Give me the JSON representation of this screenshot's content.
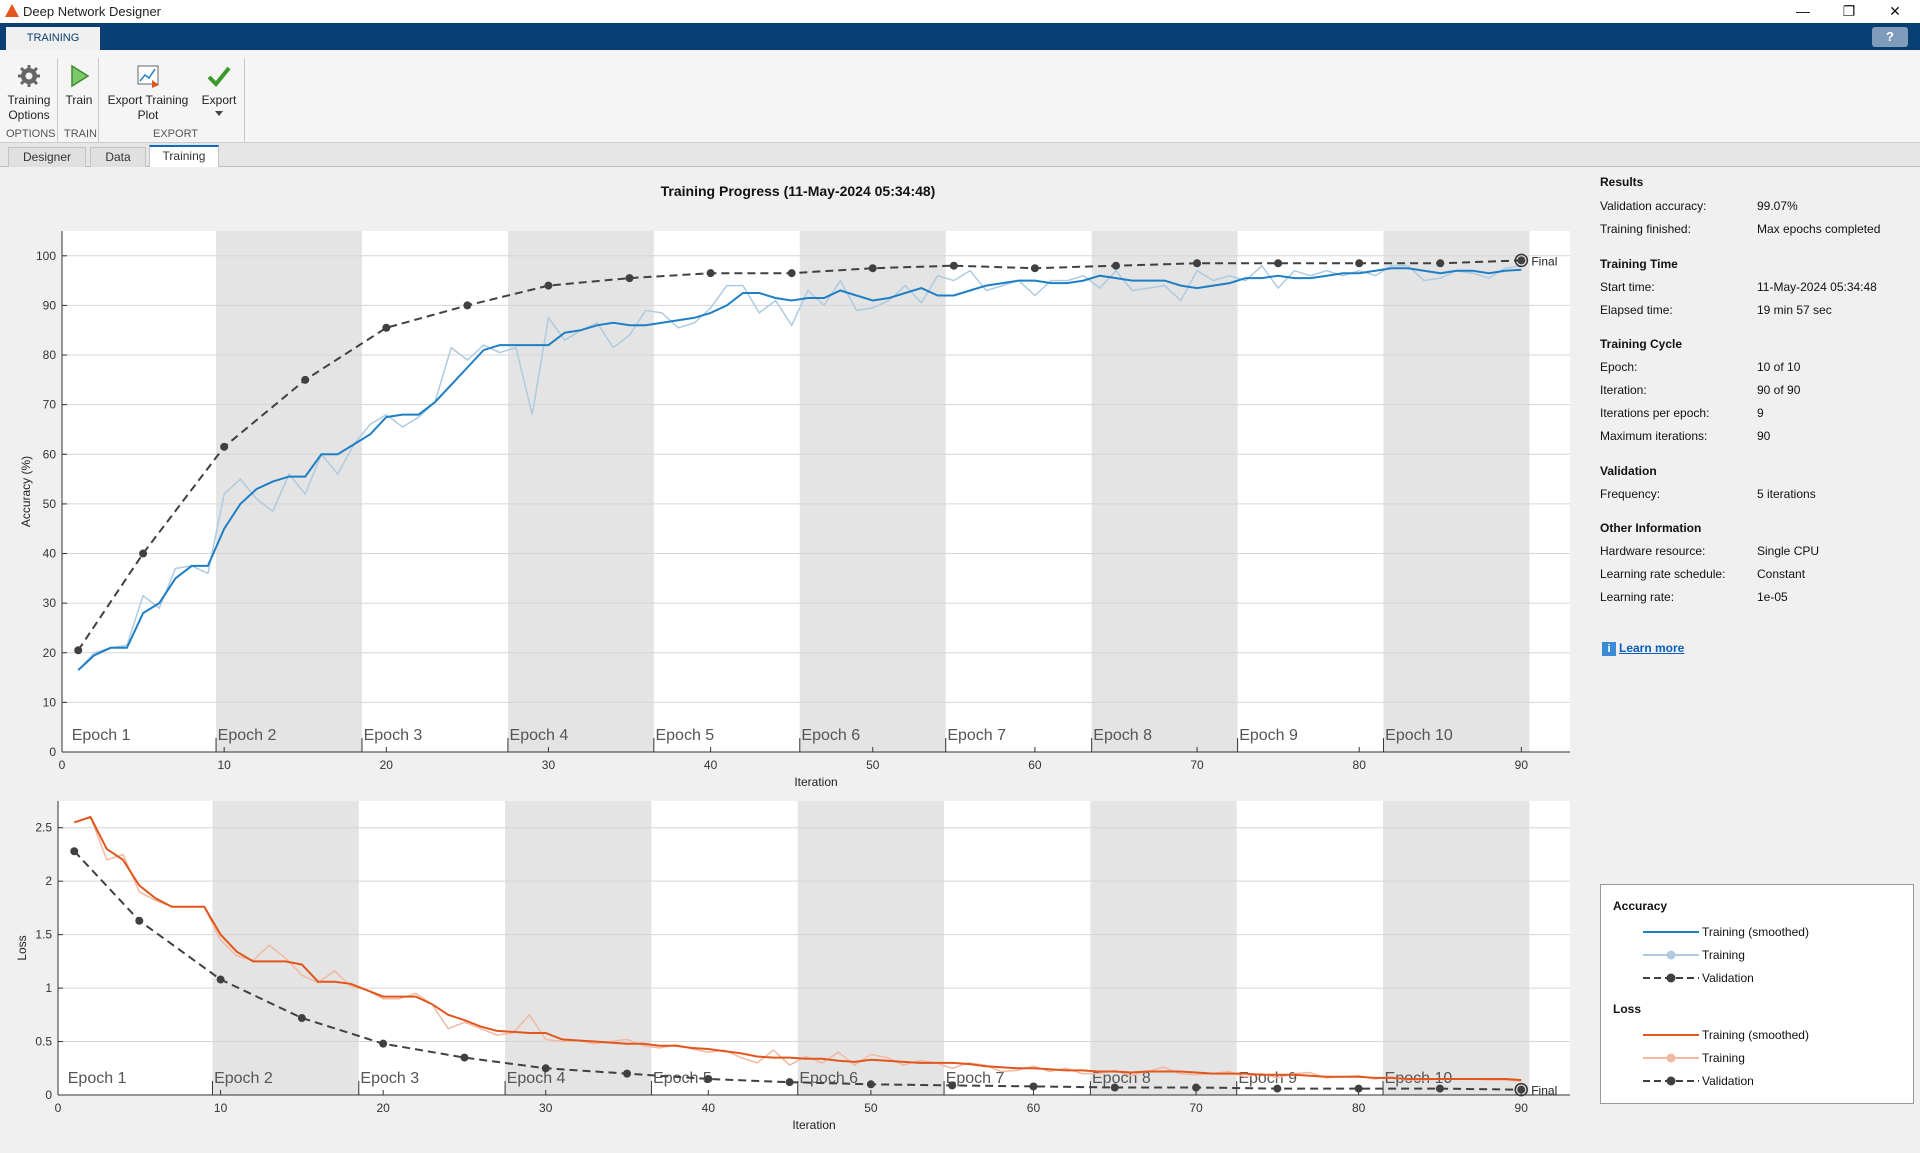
{
  "window": {
    "title": "Deep Network Designer",
    "minimize": "—",
    "restore": "❐",
    "close": "✕"
  },
  "ribbon": {
    "active_tab": "TRAINING",
    "help": "?",
    "tools": {
      "training_options": "Training Options",
      "train": "Train",
      "export_plot": "Export Training Plot",
      "export": "Export"
    },
    "sections": {
      "options": "OPTIONS",
      "train": "TRAIN",
      "export": "EXPORT"
    }
  },
  "doc_tabs": [
    "Designer",
    "Data",
    "Training"
  ],
  "results": {
    "sections": {
      "results": "Results",
      "training_time": "Training Time",
      "training_cycle": "Training Cycle",
      "validation": "Validation",
      "other": "Other Information"
    },
    "rows": {
      "validation_accuracy": {
        "k": "Validation accuracy:",
        "v": "99.07%"
      },
      "training_finished": {
        "k": "Training finished:",
        "v": "Max epochs completed"
      },
      "start_time": {
        "k": "Start time:",
        "v": "11-May-2024 05:34:48"
      },
      "elapsed": {
        "k": "Elapsed time:",
        "v": "19 min 57 sec"
      },
      "epoch": {
        "k": "Epoch:",
        "v": "10 of 10"
      },
      "iteration": {
        "k": "Iteration:",
        "v": "90 of 90"
      },
      "iter_per_epoch": {
        "k": "Iterations per epoch:",
        "v": "9"
      },
      "max_iter": {
        "k": "Maximum iterations:",
        "v": "90"
      },
      "frequency": {
        "k": "Frequency:",
        "v": "5 iterations"
      },
      "hardware": {
        "k": "Hardware resource:",
        "v": "Single CPU"
      },
      "lr_schedule": {
        "k": "Learning rate schedule:",
        "v": "Constant"
      },
      "lr": {
        "k": "Learning rate:",
        "v": "1e-05"
      }
    },
    "learn_more": "Learn more"
  },
  "legend": {
    "accuracy_title": "Accuracy",
    "loss_title": "Loss",
    "smoothed": "Training (smoothed)",
    "training": "Training",
    "validation": "Validation"
  },
  "colors": {
    "accuracy": "#1f7fc4",
    "accuracy_light": "#aecbe0",
    "loss": "#e0571d",
    "loss_light": "#f2b9a2",
    "validation": "#404040",
    "epoch_shade": "#e4e4e4"
  },
  "chart_data": [
    {
      "type": "line",
      "title": "Training Progress (11-May-2024 05:34:48)",
      "xlabel": "Iteration",
      "ylabel": "Accuracy (%)",
      "xlim": [
        0,
        93
      ],
      "ylim": [
        0,
        105
      ],
      "xticks": [
        0,
        10,
        20,
        30,
        40,
        50,
        60,
        70,
        80,
        90
      ],
      "yticks": [
        0,
        10,
        20,
        30,
        40,
        50,
        60,
        70,
        80,
        90,
        100
      ],
      "epochs": [
        "Epoch 1",
        "Epoch 2",
        "Epoch 3",
        "Epoch 4",
        "Epoch 5",
        "Epoch 6",
        "Epoch 7",
        "Epoch 8",
        "Epoch 9",
        "Epoch 10"
      ],
      "final_label": "Final",
      "series": [
        {
          "name": "Training (smoothed)",
          "x": [
            1,
            2,
            3,
            4,
            5,
            6,
            7,
            8,
            9,
            10,
            11,
            12,
            13,
            14,
            15,
            16,
            17,
            18,
            19,
            20,
            21,
            22,
            23,
            24,
            25,
            26,
            27,
            28,
            29,
            30,
            31,
            32,
            33,
            34,
            35,
            36,
            37,
            38,
            39,
            40,
            41,
            42,
            43,
            44,
            45,
            46,
            47,
            48,
            49,
            50,
            51,
            52,
            53,
            54,
            55,
            56,
            57,
            58,
            59,
            60,
            61,
            62,
            63,
            64,
            65,
            66,
            67,
            68,
            69,
            70,
            71,
            72,
            73,
            74,
            75,
            76,
            77,
            78,
            79,
            80,
            81,
            82,
            83,
            84,
            85,
            86,
            87,
            88,
            89,
            90
          ],
          "y": [
            16.5,
            19.5,
            21,
            21,
            28,
            30,
            35,
            37.5,
            37.5,
            45,
            50,
            53,
            54.5,
            55.5,
            55.5,
            60,
            60,
            62,
            64,
            67.5,
            68,
            68,
            70.5,
            74,
            77.5,
            81,
            82,
            82,
            82,
            82,
            84.5,
            85,
            86,
            86.5,
            86,
            86,
            86.5,
            87,
            87.5,
            88.5,
            90,
            92.5,
            92.5,
            91.5,
            91,
            91.5,
            91.5,
            93,
            92,
            91,
            91.5,
            92.5,
            93.5,
            92,
            92,
            93,
            94,
            94.5,
            95,
            95,
            94.5,
            94.5,
            95,
            96,
            95.5,
            95,
            95,
            95,
            94,
            93.5,
            94,
            94.5,
            95.5,
            95.5,
            96,
            95.5,
            95.5,
            96,
            96.5,
            96.5,
            97,
            97.5,
            97.5,
            97,
            96.5,
            97,
            97,
            96.5,
            97,
            97.2
          ]
        },
        {
          "name": "Training",
          "x": [
            1,
            2,
            3,
            4,
            5,
            6,
            7,
            8,
            9,
            10,
            11,
            12,
            13,
            14,
            15,
            16,
            17,
            18,
            19,
            20,
            21,
            22,
            23,
            24,
            25,
            26,
            27,
            28,
            29,
            30,
            31,
            32,
            33,
            34,
            35,
            36,
            37,
            38,
            39,
            40,
            41,
            42,
            43,
            44,
            45,
            46,
            47,
            48,
            49,
            50,
            51,
            52,
            53,
            54,
            55,
            56,
            57,
            58,
            59,
            60,
            61,
            62,
            63,
            64,
            65,
            66,
            67,
            68,
            69,
            70,
            71,
            72,
            73,
            74,
            75,
            76,
            77,
            78,
            79,
            80,
            81,
            82,
            83,
            84,
            85,
            86,
            87,
            88,
            89,
            90
          ],
          "y": [
            16.5,
            20,
            21,
            21.5,
            31.5,
            29,
            37,
            37.5,
            36,
            52,
            55,
            51,
            48.5,
            56,
            52,
            60,
            56,
            62,
            66,
            68,
            65.5,
            67.5,
            70.5,
            81.5,
            79,
            82,
            80.5,
            81.5,
            68,
            87.5,
            83,
            85,
            86.5,
            81.5,
            84,
            89,
            88.5,
            85.5,
            86.5,
            89.5,
            94,
            94,
            88.5,
            91,
            86,
            93,
            90,
            95,
            89,
            89.5,
            91,
            94,
            90.5,
            96,
            95,
            97,
            93,
            94,
            95,
            92,
            95,
            95,
            96,
            93.5,
            97,
            93,
            93.5,
            94,
            91,
            97,
            95,
            96,
            95,
            98,
            93.5,
            97,
            96,
            97,
            96,
            97,
            96,
            98,
            98,
            95,
            95.5,
            97,
            96.5,
            95.5,
            97.5,
            98
          ]
        },
        {
          "name": "Validation",
          "x": [
            1,
            5,
            10,
            15,
            20,
            25,
            30,
            35,
            40,
            45,
            50,
            55,
            60,
            65,
            70,
            75,
            80,
            85,
            90
          ],
          "y": [
            20.5,
            40,
            61.5,
            75,
            85.5,
            90,
            94,
            95.5,
            96.5,
            96.5,
            97.5,
            98,
            97.5,
            98,
            98.5,
            98.5,
            98.5,
            98.5,
            99.07
          ]
        }
      ]
    },
    {
      "type": "line",
      "xlabel": "Iteration",
      "ylabel": "Loss",
      "xlim": [
        0,
        93
      ],
      "ylim": [
        0,
        2.75
      ],
      "xticks": [
        0,
        10,
        20,
        30,
        40,
        50,
        60,
        70,
        80,
        90
      ],
      "yticks": [
        0,
        0.5,
        1,
        1.5,
        2,
        2.5
      ],
      "ytick_labels": [
        "0",
        "0.5",
        "1",
        "1.5",
        "2",
        "2.5"
      ],
      "epochs": [
        "Epoch 1",
        "Epoch 2",
        "Epoch 3",
        "Epoch 4",
        "Epoch 5",
        "Epoch 6",
        "Epoch 7",
        "Epoch 8",
        "Epoch 9",
        "Epoch 10"
      ],
      "final_label": "Final",
      "series": [
        {
          "name": "Training (smoothed)",
          "x": [
            1,
            2,
            3,
            4,
            5,
            6,
            7,
            8,
            9,
            10,
            11,
            12,
            13,
            14,
            15,
            16,
            17,
            18,
            19,
            20,
            21,
            22,
            23,
            24,
            25,
            26,
            27,
            28,
            29,
            30,
            31,
            32,
            33,
            34,
            35,
            36,
            37,
            38,
            39,
            40,
            41,
            42,
            43,
            44,
            45,
            46,
            47,
            48,
            49,
            50,
            51,
            52,
            53,
            54,
            55,
            56,
            57,
            58,
            59,
            60,
            61,
            62,
            63,
            64,
            65,
            66,
            67,
            68,
            69,
            70,
            71,
            72,
            73,
            74,
            75,
            76,
            77,
            78,
            79,
            80,
            81,
            82,
            83,
            84,
            85,
            86,
            87,
            88,
            89,
            90
          ],
          "y": [
            2.55,
            2.6,
            2.3,
            2.2,
            1.96,
            1.84,
            1.76,
            1.76,
            1.76,
            1.5,
            1.34,
            1.25,
            1.25,
            1.25,
            1.22,
            1.06,
            1.06,
            1.04,
            0.98,
            0.92,
            0.92,
            0.92,
            0.85,
            0.75,
            0.7,
            0.64,
            0.6,
            0.59,
            0.58,
            0.58,
            0.52,
            0.51,
            0.5,
            0.49,
            0.48,
            0.48,
            0.46,
            0.46,
            0.44,
            0.43,
            0.41,
            0.39,
            0.36,
            0.35,
            0.35,
            0.34,
            0.34,
            0.32,
            0.31,
            0.33,
            0.32,
            0.31,
            0.3,
            0.3,
            0.3,
            0.29,
            0.27,
            0.26,
            0.25,
            0.25,
            0.24,
            0.23,
            0.23,
            0.22,
            0.22,
            0.21,
            0.22,
            0.22,
            0.22,
            0.21,
            0.2,
            0.2,
            0.2,
            0.19,
            0.19,
            0.19,
            0.18,
            0.17,
            0.17,
            0.17,
            0.16,
            0.16,
            0.15,
            0.15,
            0.15,
            0.15,
            0.15,
            0.15,
            0.15,
            0.14
          ]
        },
        {
          "name": "Training",
          "x": [
            1,
            2,
            3,
            4,
            5,
            6,
            7,
            8,
            9,
            10,
            11,
            12,
            13,
            14,
            15,
            16,
            17,
            18,
            19,
            20,
            21,
            22,
            23,
            24,
            25,
            26,
            27,
            28,
            29,
            30,
            31,
            32,
            33,
            34,
            35,
            36,
            37,
            38,
            39,
            40,
            41,
            42,
            43,
            44,
            45,
            46,
            47,
            48,
            49,
            50,
            51,
            52,
            53,
            54,
            55,
            56,
            57,
            58,
            59,
            60,
            61,
            62,
            63,
            64,
            65,
            66,
            67,
            68,
            69,
            70,
            71,
            72,
            73,
            74,
            75,
            76,
            77,
            78,
            79,
            80,
            81,
            82,
            83,
            84,
            85,
            86,
            87,
            88,
            89,
            90
          ],
          "y": [
            2.55,
            2.6,
            2.2,
            2.25,
            1.9,
            1.82,
            1.76,
            1.76,
            1.76,
            1.45,
            1.3,
            1.26,
            1.4,
            1.28,
            1.12,
            1.05,
            1.16,
            1.02,
            0.98,
            0.9,
            0.9,
            0.95,
            0.85,
            0.62,
            0.68,
            0.62,
            0.56,
            0.58,
            0.75,
            0.52,
            0.5,
            0.51,
            0.48,
            0.5,
            0.52,
            0.46,
            0.44,
            0.47,
            0.43,
            0.4,
            0.42,
            0.35,
            0.3,
            0.42,
            0.28,
            0.36,
            0.3,
            0.4,
            0.28,
            0.38,
            0.35,
            0.28,
            0.32,
            0.3,
            0.25,
            0.3,
            0.28,
            0.22,
            0.23,
            0.27,
            0.22,
            0.25,
            0.2,
            0.2,
            0.23,
            0.18,
            0.22,
            0.26,
            0.2,
            0.19,
            0.2,
            0.22,
            0.17,
            0.2,
            0.16,
            0.2,
            0.21,
            0.16,
            0.17,
            0.18,
            0.15,
            0.17,
            0.14,
            0.14,
            0.15,
            0.15,
            0.15,
            0.14,
            0.14,
            0.13
          ]
        },
        {
          "name": "Validation",
          "x": [
            1,
            5,
            10,
            15,
            20,
            25,
            30,
            35,
            40,
            45,
            50,
            55,
            60,
            65,
            70,
            75,
            80,
            85,
            90
          ],
          "y": [
            2.28,
            1.63,
            1.08,
            0.72,
            0.48,
            0.35,
            0.25,
            0.2,
            0.15,
            0.12,
            0.1,
            0.09,
            0.08,
            0.07,
            0.07,
            0.06,
            0.06,
            0.06,
            0.05
          ]
        }
      ]
    }
  ]
}
